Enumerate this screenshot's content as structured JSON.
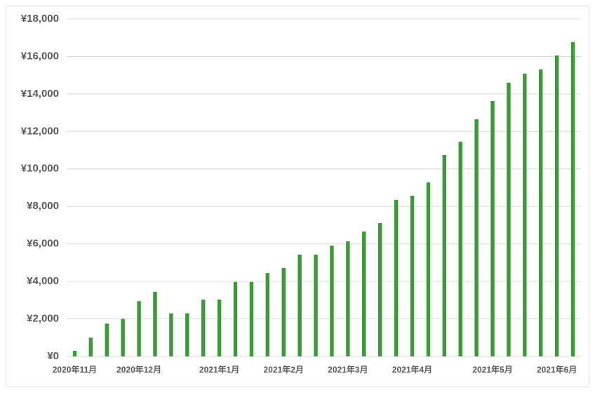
{
  "chart_data": {
    "type": "bar",
    "categories": [
      "2020年11月",
      null,
      null,
      null,
      "2020年12月",
      null,
      null,
      null,
      null,
      "2021年1月",
      null,
      null,
      null,
      "2021年2月",
      null,
      null,
      null,
      "2021年3月",
      null,
      null,
      null,
      "2021年4月",
      null,
      null,
      null,
      null,
      "2021年5月",
      null,
      null,
      null,
      "2021年6月",
      null
    ],
    "values": [
      300,
      1000,
      1750,
      2000,
      2950,
      3450,
      2300,
      2300,
      3030,
      3030,
      3970,
      3970,
      4450,
      4720,
      5430,
      5430,
      5910,
      6140,
      6660,
      7110,
      8350,
      8570,
      9280,
      10740,
      11450,
      12650,
      13620,
      14600,
      15080,
      15310,
      16050,
      16770
    ],
    "color": "#3a9a35",
    "ylim": [
      0,
      18000
    ],
    "yticks": [
      {
        "value": 0,
        "label": "¥0"
      },
      {
        "value": 2000,
        "label": "¥2,000"
      },
      {
        "value": 4000,
        "label": "¥4,000"
      },
      {
        "value": 6000,
        "label": "¥6,000"
      },
      {
        "value": 8000,
        "label": "¥8,000"
      },
      {
        "value": 10000,
        "label": "¥10,000"
      },
      {
        "value": 12000,
        "label": "¥12,000"
      },
      {
        "value": 14000,
        "label": "¥14,000"
      },
      {
        "value": 16000,
        "label": "¥16,000"
      },
      {
        "value": 18000,
        "label": "¥18,000"
      }
    ],
    "grid": true
  }
}
